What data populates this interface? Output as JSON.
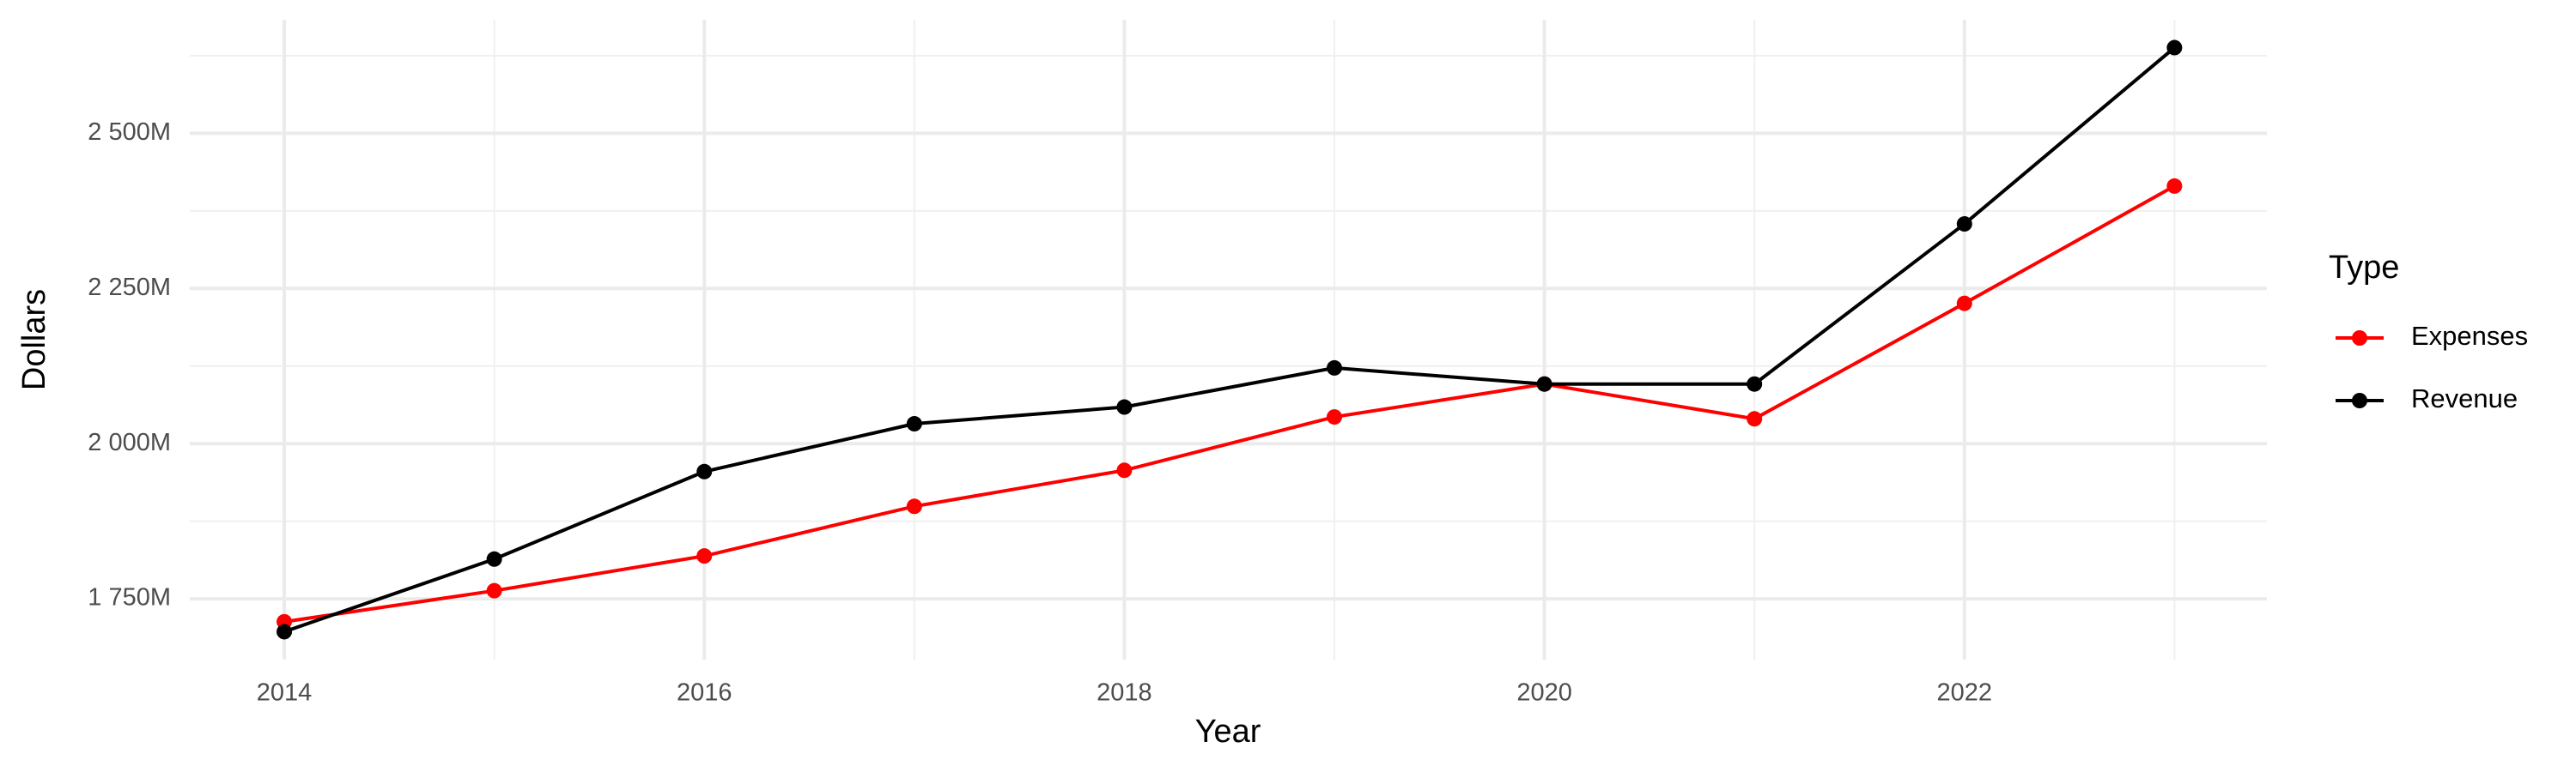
{
  "chart_data": {
    "type": "line",
    "x_label": "Year",
    "y_label": "Dollars",
    "legend_title": "Type",
    "x": [
      2014,
      2015,
      2016,
      2017,
      2018,
      2019,
      2020,
      2021,
      2022,
      2023
    ],
    "series": [
      {
        "name": "Expenses",
        "color": "#ff0000",
        "values": [
          1713,
          1763,
          1819,
          1899,
          1957,
          2043,
          2096,
          2040,
          2226,
          2415
        ]
      },
      {
        "name": "Revenue",
        "color": "#000000",
        "values": [
          1697,
          1814,
          1955,
          2032,
          2059,
          2122,
          2096,
          2096,
          2354,
          2638
        ]
      }
    ],
    "xlim": [
      2013.55,
      2023.44
    ],
    "xticks": [
      2014,
      2016,
      2018,
      2020,
      2022
    ],
    "x_minor_ticks": [
      2015,
      2017,
      2019,
      2021,
      2023
    ],
    "ylim": [
      1652,
      2683
    ],
    "yticks": [
      {
        "value": 1750,
        "label": "1 750M"
      },
      {
        "value": 2000,
        "label": "2 000M"
      },
      {
        "value": 2250,
        "label": "2 250M"
      },
      {
        "value": 2500,
        "label": "2 500M"
      }
    ],
    "y_minor_ticks": [
      1875,
      2125,
      2375,
      2625
    ],
    "grid": true,
    "legend": "right"
  }
}
